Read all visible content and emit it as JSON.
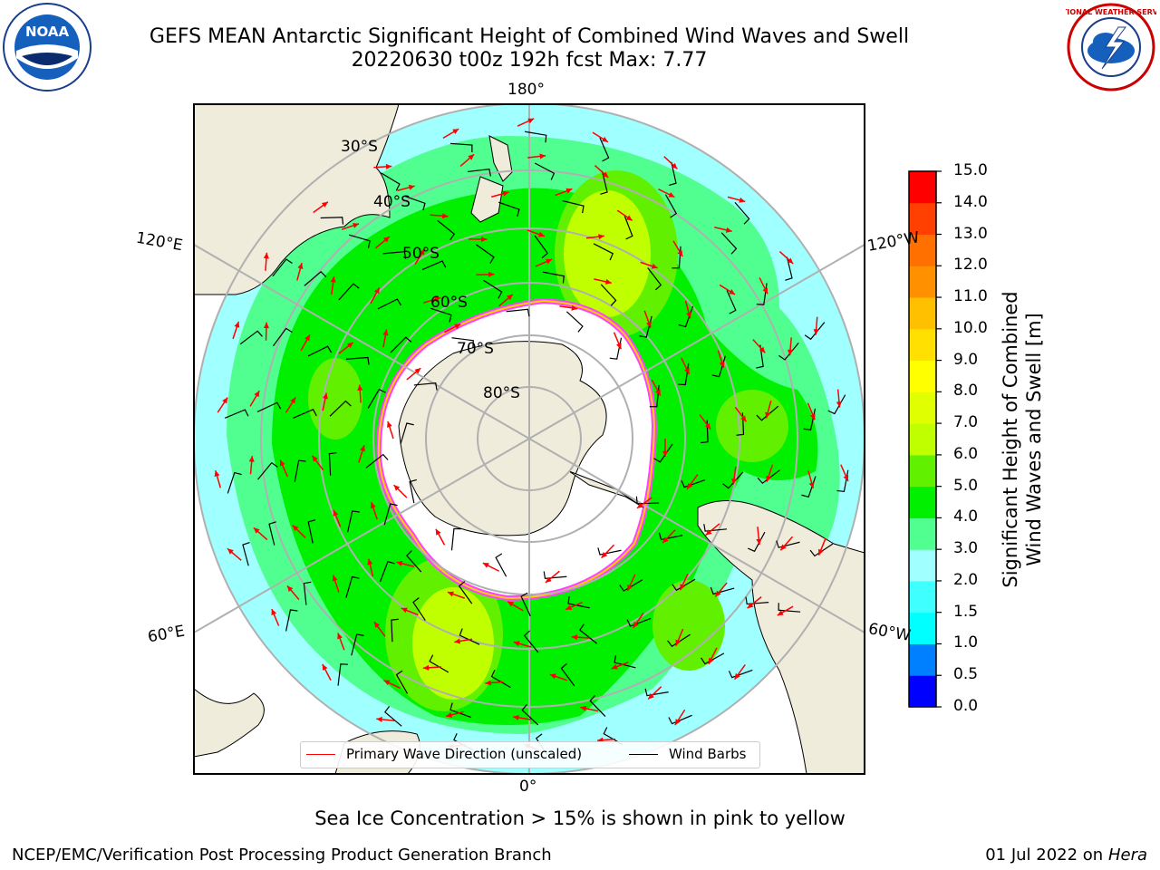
{
  "title": {
    "line1": "GEFS MEAN Antarctic Significant Height of Combined Wind Waves and Swell",
    "line2": "20220630 t00z 192h fcst   Max: 7.77"
  },
  "logos": {
    "left": {
      "icon": "noaa-logo",
      "text": "NOAA"
    },
    "right": {
      "icon": "national-weather-service-logo",
      "text": "NATIONAL WEATHER SERVICE"
    }
  },
  "map": {
    "projection": "south-polar-stereographic",
    "longitude_labels": [
      "180°",
      "120°E",
      "120°W",
      "60°E",
      "60°W",
      "0°"
    ],
    "latitude_labels": [
      "30°S",
      "40°S",
      "50°S",
      "60°S",
      "70°S",
      "80°S"
    ],
    "colors": {
      "land": "#efecdc",
      "ocean_missing": "#ffffff",
      "wave_direction_arrow": "#ff0000",
      "wind_barb": "#000000",
      "grid": "#b0b0b0"
    },
    "legend": {
      "wave_direction": "Primary Wave Direction (unscaled)",
      "wind_barbs": "Wind Barbs"
    }
  },
  "colorbar": {
    "label_line1": "Significant Height of Combined",
    "label_line2": "Wind Waves and Swell [m]",
    "ticks": [
      "0.0",
      "0.5",
      "1.0",
      "1.5",
      "2.0",
      "3.0",
      "4.0",
      "5.0",
      "6.0",
      "7.0",
      "8.0",
      "9.0",
      "10.0",
      "11.0",
      "12.0",
      "13.0",
      "14.0",
      "15.0"
    ],
    "colors": [
      "#0000ff",
      "#0080ff",
      "#00ffff",
      "#40ffff",
      "#a0ffff",
      "#50ff90",
      "#00f000",
      "#60f000",
      "#c0ff00",
      "#e0ff00",
      "#ffff00",
      "#ffe000",
      "#ffc000",
      "#ff9000",
      "#ff7000",
      "#ff4000",
      "#ff0000"
    ]
  },
  "sea_ice_note": "Sea Ice Concentration > 15% is shown in pink to yellow",
  "footer": {
    "left": "NCEP/EMC/Verification Post Processing Product Generation Branch",
    "right_date": "01 Jul 2022 on ",
    "right_system": "Hera"
  }
}
